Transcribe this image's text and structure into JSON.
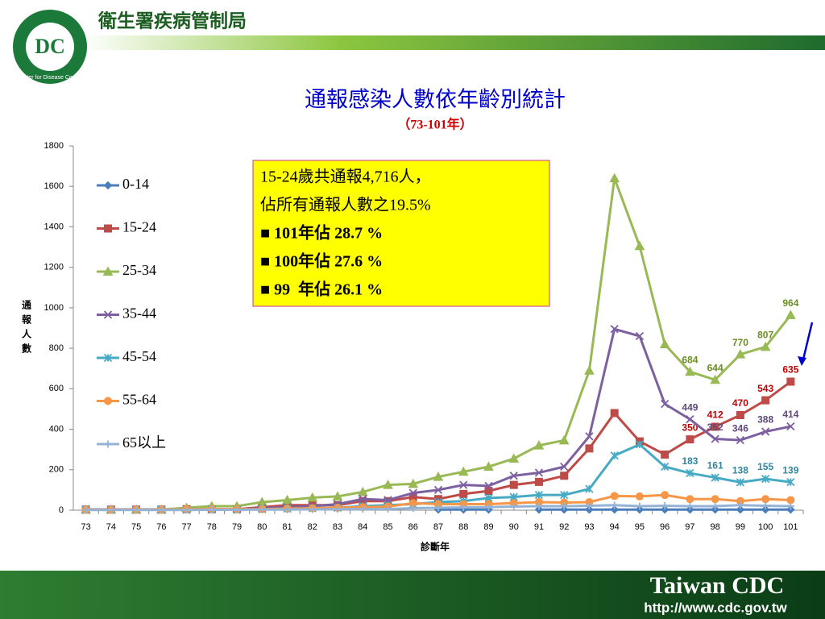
{
  "header": {
    "org": "衛生署疾病管制局",
    "logo_text": "Center for Disease Control",
    "logo_mark": "DC"
  },
  "footer": {
    "brand": "Taiwan CDC",
    "url": "http://www.cdc.gov.tw"
  },
  "chart_data": {
    "type": "line",
    "title": "通報感染人數依年齡別統計",
    "subtitle": "（73-101年）",
    "y_label": "通報人數",
    "x_label": "診斷年",
    "categories": [
      "73",
      "74",
      "75",
      "76",
      "77",
      "78",
      "79",
      "80",
      "81",
      "82",
      "83",
      "84",
      "85",
      "86",
      "87",
      "88",
      "89",
      "90",
      "91",
      "92",
      "93",
      "94",
      "95",
      "96",
      "97",
      "98",
      "99",
      "100",
      "101"
    ],
    "ylim": [
      0,
      1800
    ],
    "yticks": [
      0,
      200,
      400,
      600,
      800,
      1000,
      1200,
      1400,
      1600,
      1800
    ],
    "legend": "left",
    "annotations": [
      "15-24歲共通報4,716人，",
      "佔所有通報人數之19.5%",
      "■ 101年佔 28.7 %",
      "■ 100年佔 27.6 %",
      "■ 99  年佔 26.1 %"
    ],
    "series": [
      {
        "name": "0-14",
        "color": "#4a7ebb",
        "marker": "diamond",
        "label_indices": [],
        "values": [
          null,
          null,
          null,
          null,
          null,
          null,
          null,
          null,
          null,
          null,
          null,
          null,
          null,
          null,
          3,
          3,
          3,
          null,
          3,
          3,
          3,
          3,
          3,
          3,
          3,
          3,
          3,
          3,
          3
        ]
      },
      {
        "name": "15-24",
        "color": "#be4b48",
        "marker": "square",
        "label_color": "#c00000",
        "label_indices": [
          24,
          25,
          26,
          27,
          28
        ],
        "values": [
          3,
          3,
          3,
          3,
          5,
          5,
          5,
          15,
          25,
          25,
          25,
          45,
          45,
          65,
          55,
          80,
          95,
          125,
          140,
          170,
          305,
          480,
          340,
          275,
          350,
          412,
          470,
          543,
          635
        ]
      },
      {
        "name": "25-34",
        "color": "#98b954",
        "marker": "triangle",
        "label_color": "#6b8e23",
        "label_indices": [
          24,
          25,
          26,
          27,
          28
        ],
        "values": [
          3,
          3,
          3,
          3,
          12,
          20,
          20,
          40,
          50,
          62,
          68,
          90,
          125,
          130,
          165,
          190,
          215,
          255,
          320,
          345,
          690,
          1640,
          1305,
          820,
          684,
          644,
          770,
          807,
          964
        ]
      },
      {
        "name": "35-44",
        "color": "#7d60a0",
        "marker": "x",
        "label_color": "#5f497a",
        "label_indices": [
          24,
          25,
          26,
          27,
          28
        ],
        "values": [
          3,
          3,
          3,
          3,
          3,
          3,
          3,
          10,
          15,
          20,
          30,
          55,
          50,
          85,
          100,
          125,
          120,
          170,
          185,
          215,
          365,
          895,
          860,
          525,
          449,
          352,
          346,
          388,
          414
        ]
      },
      {
        "name": "45-54",
        "color": "#46aac5",
        "marker": "asterisk",
        "label_color": "#31859c",
        "label_indices": [
          24,
          25,
          26,
          27,
          28
        ],
        "values": [
          2,
          2,
          2,
          2,
          2,
          3,
          3,
          5,
          8,
          10,
          12,
          20,
          25,
          30,
          40,
          45,
          60,
          65,
          75,
          75,
          105,
          270,
          325,
          215,
          183,
          161,
          138,
          155,
          139
        ]
      },
      {
        "name": "55-64",
        "color": "#f79646",
        "marker": "circle",
        "label_indices": [],
        "values": [
          2,
          2,
          2,
          2,
          5,
          5,
          5,
          5,
          8,
          10,
          12,
          15,
          18,
          35,
          30,
          30,
          30,
          35,
          40,
          38,
          40,
          70,
          68,
          75,
          55,
          55,
          45,
          55,
          50
        ]
      },
      {
        "name": "65以上",
        "color": "#94b3d6",
        "marker": "plus",
        "label_indices": [],
        "values": [
          1,
          1,
          1,
          1,
          1,
          2,
          2,
          3,
          3,
          4,
          5,
          5,
          6,
          10,
          12,
          14,
          15,
          18,
          20,
          20,
          22,
          25,
          20,
          22,
          20,
          20,
          25,
          22,
          20
        ]
      }
    ]
  }
}
